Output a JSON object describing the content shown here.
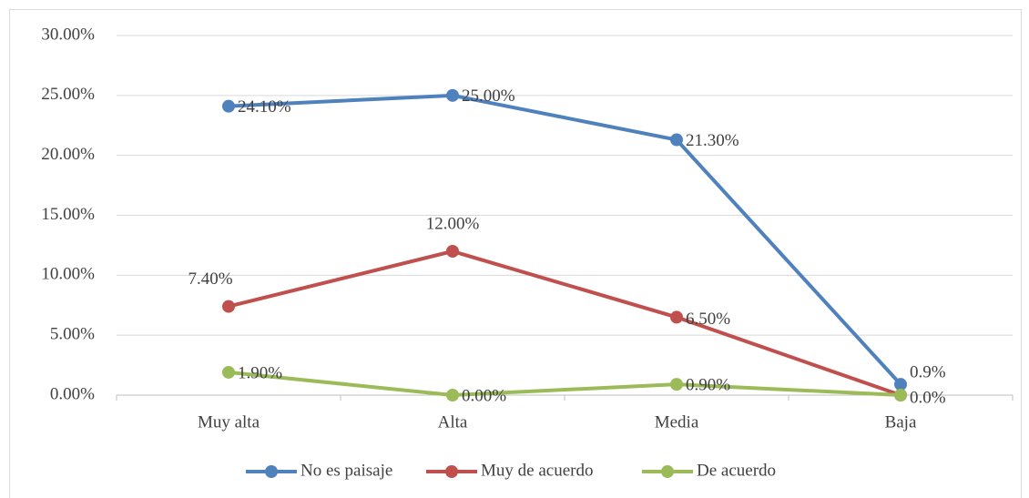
{
  "chart_data": {
    "type": "line",
    "categories": [
      "Muy alta",
      "Alta",
      "Media",
      "Baja"
    ],
    "series": [
      {
        "name": "No es paisaje",
        "color": "#4f81bd",
        "values": [
          24.1,
          25.0,
          21.3,
          0.9
        ],
        "value_labels": [
          "24.10%",
          "25.00%",
          "21.30%",
          "0.9%"
        ]
      },
      {
        "name": "Muy de acuerdo",
        "color": "#c0504d",
        "values": [
          7.4,
          12.0,
          6.5,
          0.0
        ],
        "value_labels": [
          "7.40%",
          "12.00%",
          "6.50%",
          null
        ]
      },
      {
        "name": "De acuerdo",
        "color": "#9bbb59",
        "values": [
          1.9,
          0.0,
          0.9,
          0.0
        ],
        "value_labels": [
          "1.90%",
          "0.00%",
          "0.90%",
          "0.0%"
        ]
      }
    ],
    "ylim": [
      0,
      30
    ],
    "yticks": [
      {
        "value": 0,
        "label": "0.00%"
      },
      {
        "value": 5,
        "label": "5.00%"
      },
      {
        "value": 10,
        "label": "10.00%"
      },
      {
        "value": 15,
        "label": "15.00%"
      },
      {
        "value": 20,
        "label": "20.00%"
      },
      {
        "value": 25,
        "label": "25.00%"
      },
      {
        "value": 30,
        "label": "30.00%"
      }
    ],
    "grid": true,
    "legend": "bottom"
  }
}
